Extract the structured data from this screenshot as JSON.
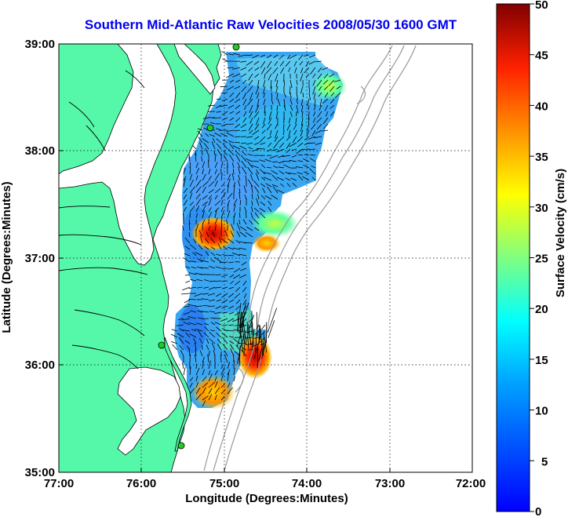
{
  "title": "Southern Mid-Atlantic Raw Velocities 2008/05/30 1600 GMT",
  "x_axis": {
    "label": "Longitude (Degrees:Minutes)",
    "ticks": [
      "77:00",
      "76:00",
      "75:00",
      "74:00",
      "73:00",
      "72:00"
    ]
  },
  "y_axis": {
    "label": "Latitude (Degrees:Minutes)",
    "ticks": [
      "39:00",
      "38:00",
      "37:00",
      "36:00",
      "35:00"
    ]
  },
  "colorbar": {
    "label": "Surface Velocity (cm/s)",
    "ticks": [
      "50",
      "45",
      "40",
      "35",
      "30",
      "25",
      "20",
      "15",
      "10",
      "5",
      "0"
    ],
    "min": 0,
    "max": 50,
    "colormap": "jet"
  },
  "colors": {
    "title": "#0000ee",
    "land": "#55f8a9",
    "water": "#ffffff",
    "bathymetry": "#999999",
    "grid": "#000000",
    "station": "#22cc22"
  },
  "chart_data": {
    "type": "heatmap",
    "title": "Southern Mid-Atlantic Raw Velocities 2008/05/30 1600 GMT",
    "xlabel": "Longitude (Degrees:Minutes)",
    "ylabel": "Latitude (Degrees:Minutes)",
    "xlim": [
      -77.0,
      -72.0
    ],
    "ylim": [
      35.0,
      39.0
    ],
    "grid": "dotted",
    "value_label": "Surface Velocity (cm/s)",
    "value_range": [
      0,
      50
    ],
    "stations": [
      {
        "lon": -74.98,
        "lat": 38.97
      },
      {
        "lon": -75.15,
        "lat": 38.21
      },
      {
        "lon": -75.69,
        "lat": 36.18
      },
      {
        "lon": -75.53,
        "lat": 35.28
      }
    ],
    "hotspots": [
      {
        "lon": -75.15,
        "lat": 37.22,
        "speed": 45
      },
      {
        "lon": -74.73,
        "lat": 36.0,
        "speed": 48
      },
      {
        "lon": -75.05,
        "lat": 35.82,
        "speed": 30
      },
      {
        "lon": -74.55,
        "lat": 37.25,
        "speed": 22
      }
    ]
  }
}
